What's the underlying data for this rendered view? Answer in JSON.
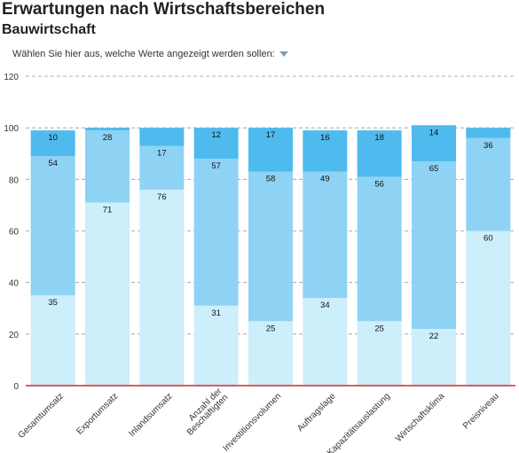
{
  "header": {
    "title": "Erwartungen nach Wirtschaftsbereichen",
    "subtitle": "Bauwirtschaft",
    "selector_label": "Wählen Sie hier aus, welche Werte angezeigt werden sollen:"
  },
  "colors": {
    "bottom": "#cdeefb",
    "middle": "#8fd3f4",
    "top": "#4fbaee",
    "baseline": "#d62828",
    "grid": "#999999"
  },
  "chart_data": {
    "type": "bar",
    "stacked": true,
    "ylim": [
      0,
      120
    ],
    "yticks": [
      0,
      20,
      40,
      60,
      80,
      100,
      120
    ],
    "grid": true,
    "categories": [
      "Gesamtumsatz",
      "Exportumsatz",
      "Inlandsumsatz",
      "Anzahl der Beschäftigten",
      "Investitionsvolumen",
      "Auftragslage",
      "Kapazitätsauslastung",
      "Wirtschaftsklima",
      "Preisniveau"
    ],
    "category_lines": [
      [
        "Gesamtumsatz"
      ],
      [
        "Exportumsatz"
      ],
      [
        "Inlandsumsatz"
      ],
      [
        "Anzahl der",
        "Beschäftigten"
      ],
      [
        "Investitionsvolumen"
      ],
      [
        "Auftragslage"
      ],
      [
        "Kapazitätsauslastung"
      ],
      [
        "Wirtschaftsklima"
      ],
      [
        "Preisniveau"
      ]
    ],
    "series": [
      {
        "values": [
          35,
          71,
          76,
          31,
          25,
          34,
          25,
          22,
          60
        ],
        "labels": [
          "35",
          "71",
          "76",
          "31",
          "25",
          "34",
          "25",
          "22",
          "60"
        ]
      },
      {
        "values": [
          54,
          28,
          17,
          57,
          58,
          49,
          56,
          65,
          36
        ],
        "labels": [
          "54",
          "28",
          "17",
          "57",
          "58",
          "49",
          "56",
          "65",
          "36"
        ]
      },
      {
        "values": [
          10,
          1,
          7,
          12,
          17,
          16,
          18,
          14,
          4
        ],
        "labels": [
          "10",
          "",
          "",
          "12",
          "17",
          "16",
          "18",
          "14",
          ""
        ]
      }
    ]
  }
}
